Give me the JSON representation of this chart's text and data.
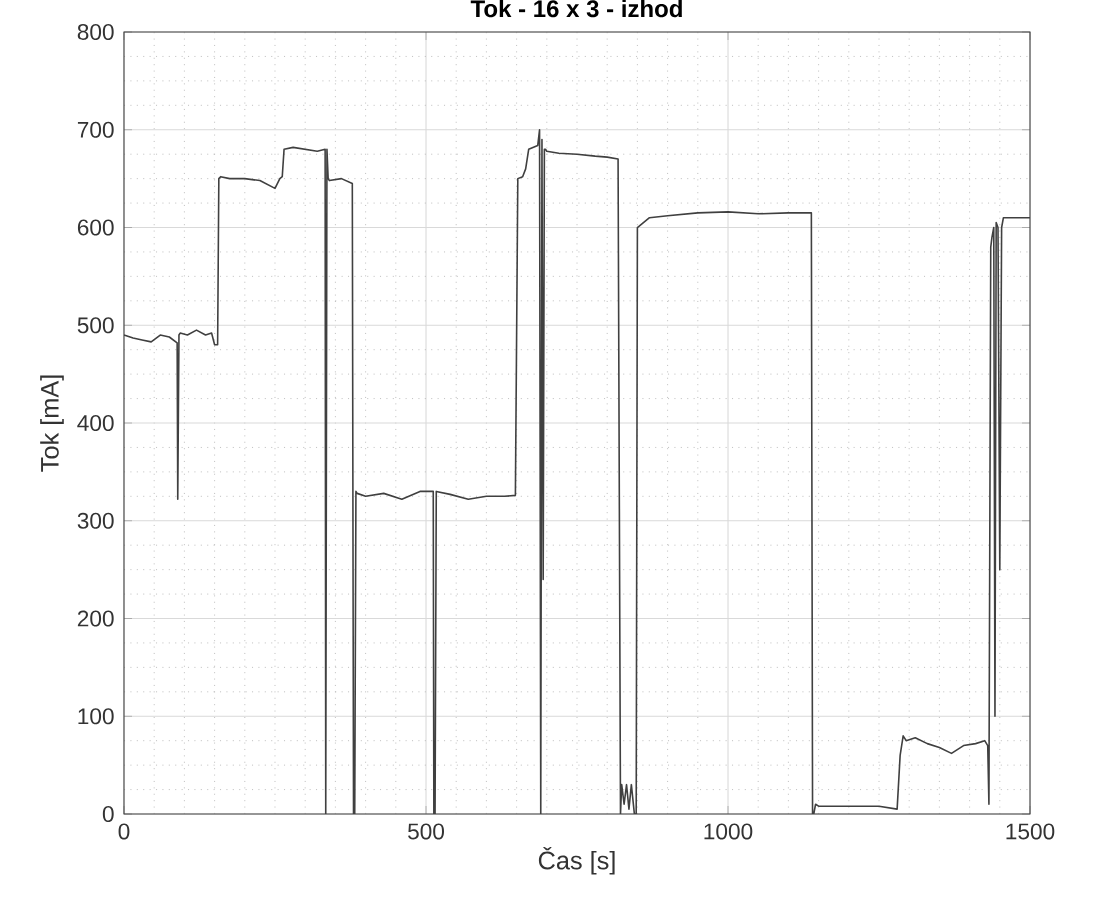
{
  "chart_data": {
    "type": "line",
    "title": "Tok - 16 x 3 - izhod",
    "xlabel": "Čas [s]",
    "ylabel": "Tok [mA]",
    "xlim": [
      0,
      1500
    ],
    "ylim": [
      0,
      800
    ],
    "xticks": [
      0,
      500,
      1000,
      1500
    ],
    "yticks": [
      0,
      100,
      200,
      300,
      400,
      500,
      600,
      700,
      800
    ],
    "grid": true,
    "line_style": "solid",
    "marker": "none",
    "series": [
      {
        "color": "#404040",
        "x": [
          0,
          15,
          30,
          45,
          60,
          75,
          88,
          89,
          91,
          93,
          105,
          120,
          135,
          145,
          150,
          155,
          157,
          160,
          175,
          200,
          225,
          250,
          258,
          262,
          265,
          280,
          300,
          320,
          333,
          334,
          336,
          338,
          340,
          360,
          378,
          380,
          382,
          384,
          386,
          400,
          430,
          460,
          490,
          512,
          513,
          515,
          517,
          540,
          570,
          600,
          630,
          648,
          652,
          660,
          665,
          670,
          685,
          688,
          690,
          692,
          694,
          696,
          698,
          700,
          720,
          750,
          780,
          800,
          818,
          822,
          824,
          828,
          832,
          836,
          840,
          845,
          848,
          850,
          870,
          900,
          950,
          1000,
          1050,
          1100,
          1138,
          1140,
          1142,
          1145,
          1150,
          1200,
          1250,
          1280,
          1285,
          1290,
          1295,
          1310,
          1330,
          1350,
          1370,
          1390,
          1410,
          1425,
          1430,
          1432,
          1435,
          1437,
          1440,
          1442,
          1444,
          1447,
          1450,
          1453,
          1456,
          1480,
          1500
        ],
        "values": [
          490,
          487,
          485,
          483,
          490,
          488,
          482,
          322,
          490,
          492,
          490,
          495,
          490,
          492,
          480,
          480,
          650,
          652,
          650,
          650,
          648,
          640,
          650,
          652,
          680,
          682,
          680,
          678,
          680,
          0,
          680,
          650,
          648,
          650,
          645,
          0,
          0,
          330,
          328,
          325,
          328,
          322,
          330,
          330,
          0,
          0,
          330,
          327,
          322,
          325,
          325,
          326,
          650,
          652,
          660,
          680,
          684,
          700,
          0,
          690,
          240,
          680,
          680,
          678,
          676,
          675,
          673,
          672,
          670,
          0,
          30,
          10,
          30,
          5,
          30,
          0,
          0,
          600,
          610,
          612,
          615,
          616,
          614,
          615,
          615,
          0,
          0,
          10,
          8,
          8,
          8,
          5,
          60,
          80,
          75,
          78,
          72,
          68,
          62,
          70,
          72,
          75,
          70,
          10,
          580,
          590,
          600,
          100,
          605,
          600,
          250,
          600,
          610,
          610,
          610
        ]
      }
    ]
  }
}
